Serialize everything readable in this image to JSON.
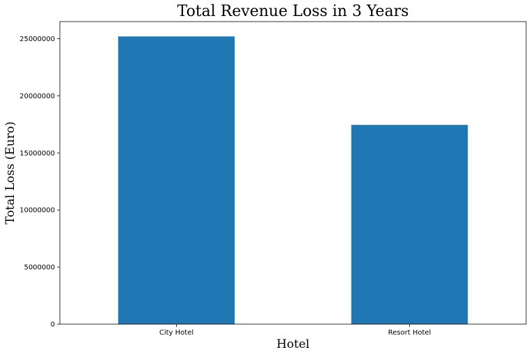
{
  "chart_data": {
    "type": "bar",
    "title": "Total Revenue Loss in 3 Years",
    "xlabel": "Hotel",
    "ylabel": "Total Loss (Euro)",
    "categories": [
      "City Hotel",
      "Resort Hotel"
    ],
    "values": [
      25200000,
      17450000
    ],
    "ylim": [
      0,
      26500000
    ],
    "yticks": [
      0,
      5000000,
      10000000,
      15000000,
      20000000,
      25000000
    ],
    "ytick_labels": [
      "0",
      "5000000",
      "10000000",
      "15000000",
      "20000000",
      "25000000"
    ],
    "bar_color": "#1f77b4",
    "grid": false,
    "legend": "none"
  }
}
